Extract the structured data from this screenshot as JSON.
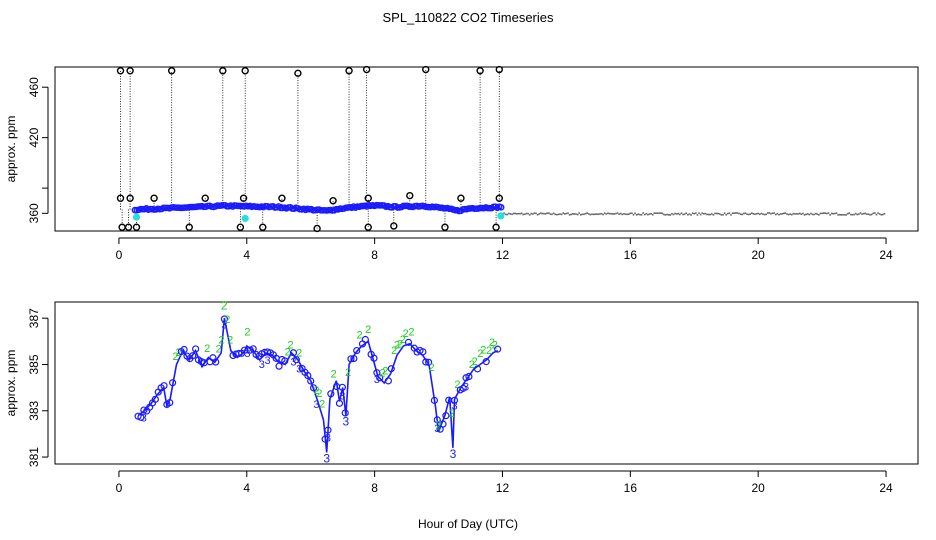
{
  "title": "SPL_110822  CO2 Timeseries",
  "xlabel": "Hour of Day (UTC)",
  "colors": {
    "black": "#000000",
    "blue": "#1a1aff",
    "cyan": "#22e0e0",
    "green": "#22cc22",
    "gray": "#666666"
  },
  "chart_data": [
    {
      "type": "scatter",
      "panel": "top",
      "ylabel": "approx. ppm",
      "xlim": [
        -2,
        25
      ],
      "ylim": [
        346,
        476
      ],
      "xticks": [
        0,
        4,
        8,
        12,
        16,
        20,
        24
      ],
      "yticks": [
        360,
        380,
        420,
        460
      ],
      "ytick_labels": [
        "360",
        "",
        "420",
        "460"
      ],
      "baseline": {
        "from": 0.5,
        "to": 12,
        "values": [
          [
            0.5,
            363
          ],
          [
            1.5,
            364
          ],
          [
            2.5,
            365
          ],
          [
            3.3,
            366
          ],
          [
            4.0,
            365.5
          ],
          [
            5.0,
            365
          ],
          [
            6.0,
            363
          ],
          [
            6.5,
            362
          ],
          [
            7.0,
            364
          ],
          [
            7.8,
            366
          ],
          [
            8.2,
            366
          ],
          [
            8.6,
            365
          ],
          [
            9.5,
            366
          ],
          [
            10.2,
            364
          ],
          [
            10.6,
            362
          ],
          [
            11.0,
            364
          ],
          [
            11.9,
            365
          ]
        ]
      },
      "gray_series": {
        "from": 12,
        "to": 24,
        "level": 359.5
      },
      "outliers": [
        [
          0.05,
          473
        ],
        [
          0.05,
          372
        ],
        [
          0.1,
          349
        ],
        [
          0.3,
          349
        ],
        [
          0.35,
          473
        ],
        [
          0.35,
          372
        ],
        [
          0.55,
          349
        ],
        [
          1.1,
          372
        ],
        [
          1.65,
          473
        ],
        [
          2.2,
          349
        ],
        [
          2.7,
          372
        ],
        [
          3.25,
          473
        ],
        [
          3.8,
          349
        ],
        [
          3.9,
          372
        ],
        [
          3.95,
          473
        ],
        [
          4.5,
          349
        ],
        [
          5.1,
          372
        ],
        [
          5.6,
          471
        ],
        [
          6.2,
          348
        ],
        [
          6.7,
          370
        ],
        [
          7.2,
          473
        ],
        [
          7.75,
          474
        ],
        [
          7.8,
          372
        ],
        [
          7.8,
          349
        ],
        [
          8.6,
          350
        ],
        [
          9.1,
          374
        ],
        [
          9.6,
          474
        ],
        [
          10.2,
          349
        ],
        [
          10.7,
          372
        ],
        [
          11.3,
          473
        ],
        [
          11.8,
          349
        ],
        [
          11.9,
          372
        ],
        [
          11.9,
          474
        ]
      ],
      "cyan_points": [
        [
          0.55,
          357
        ],
        [
          3.95,
          356
        ],
        [
          11.95,
          358
        ]
      ]
    },
    {
      "type": "line",
      "panel": "bottom",
      "ylabel": "approx. ppm",
      "xlim": [
        -2,
        25
      ],
      "ylim": [
        380.7,
        387.7
      ],
      "xticks": [
        0,
        4,
        8,
        12,
        16,
        20,
        24
      ],
      "yticks": [
        381,
        383,
        385,
        387
      ],
      "series": [
        {
          "values": [
            [
              0.6,
              382.8
            ],
            [
              0.8,
              383.0
            ],
            [
              1.0,
              383.3
            ],
            [
              1.2,
              383.7
            ],
            [
              1.4,
              384.0
            ],
            [
              1.5,
              383.2
            ],
            [
              1.6,
              383.5
            ],
            [
              1.8,
              385.0
            ],
            [
              2.0,
              385.6
            ],
            [
              2.2,
              385.2
            ],
            [
              2.4,
              385.6
            ],
            [
              2.6,
              384.9
            ],
            [
              2.8,
              385.3
            ],
            [
              3.0,
              385.1
            ],
            [
              3.2,
              385.5
            ],
            [
              3.3,
              387.0
            ],
            [
              3.5,
              385.6
            ],
            [
              3.7,
              385.3
            ],
            [
              3.9,
              385.5
            ],
            [
              4.0,
              385.8
            ],
            [
              4.2,
              385.6
            ],
            [
              4.4,
              385.2
            ],
            [
              4.6,
              385.5
            ],
            [
              4.8,
              385.4
            ],
            [
              5.0,
              385.1
            ],
            [
              5.2,
              385.0
            ],
            [
              5.4,
              385.5
            ],
            [
              5.6,
              385.2
            ],
            [
              5.8,
              384.7
            ],
            [
              6.0,
              384.3
            ],
            [
              6.2,
              383.5
            ],
            [
              6.4,
              382.6
            ],
            [
              6.5,
              381.2
            ],
            [
              6.6,
              383.5
            ],
            [
              6.8,
              384.3
            ],
            [
              6.9,
              383.4
            ],
            [
              7.0,
              384.0
            ],
            [
              7.1,
              382.8
            ],
            [
              7.2,
              385.0
            ],
            [
              7.4,
              385.5
            ],
            [
              7.6,
              385.8
            ],
            [
              7.8,
              386.0
            ],
            [
              7.9,
              385.5
            ],
            [
              8.1,
              384.5
            ],
            [
              8.3,
              384.2
            ],
            [
              8.5,
              384.6
            ],
            [
              8.7,
              385.4
            ],
            [
              8.9,
              385.8
            ],
            [
              9.1,
              385.9
            ],
            [
              9.3,
              385.6
            ],
            [
              9.5,
              385.4
            ],
            [
              9.7,
              385.0
            ],
            [
              9.9,
              383.2
            ],
            [
              10.0,
              382.1
            ],
            [
              10.2,
              382.8
            ],
            [
              10.35,
              383.6
            ],
            [
              10.45,
              381.4
            ],
            [
              10.5,
              383.5
            ],
            [
              10.7,
              384.0
            ],
            [
              10.9,
              384.4
            ],
            [
              11.1,
              384.8
            ],
            [
              11.3,
              385.0
            ],
            [
              11.5,
              385.2
            ],
            [
              11.7,
              385.5
            ],
            [
              11.85,
              385.6
            ]
          ]
        }
      ],
      "marker_labels": [
        "2",
        "3"
      ],
      "annotations": [
        [
          6.5,
          381.2,
          "3"
        ],
        [
          7.1,
          382.8,
          "3"
        ],
        [
          10.45,
          381.4,
          "3"
        ],
        [
          10.0,
          382.1,
          "2"
        ],
        [
          3.3,
          387.3,
          "2"
        ]
      ]
    }
  ]
}
